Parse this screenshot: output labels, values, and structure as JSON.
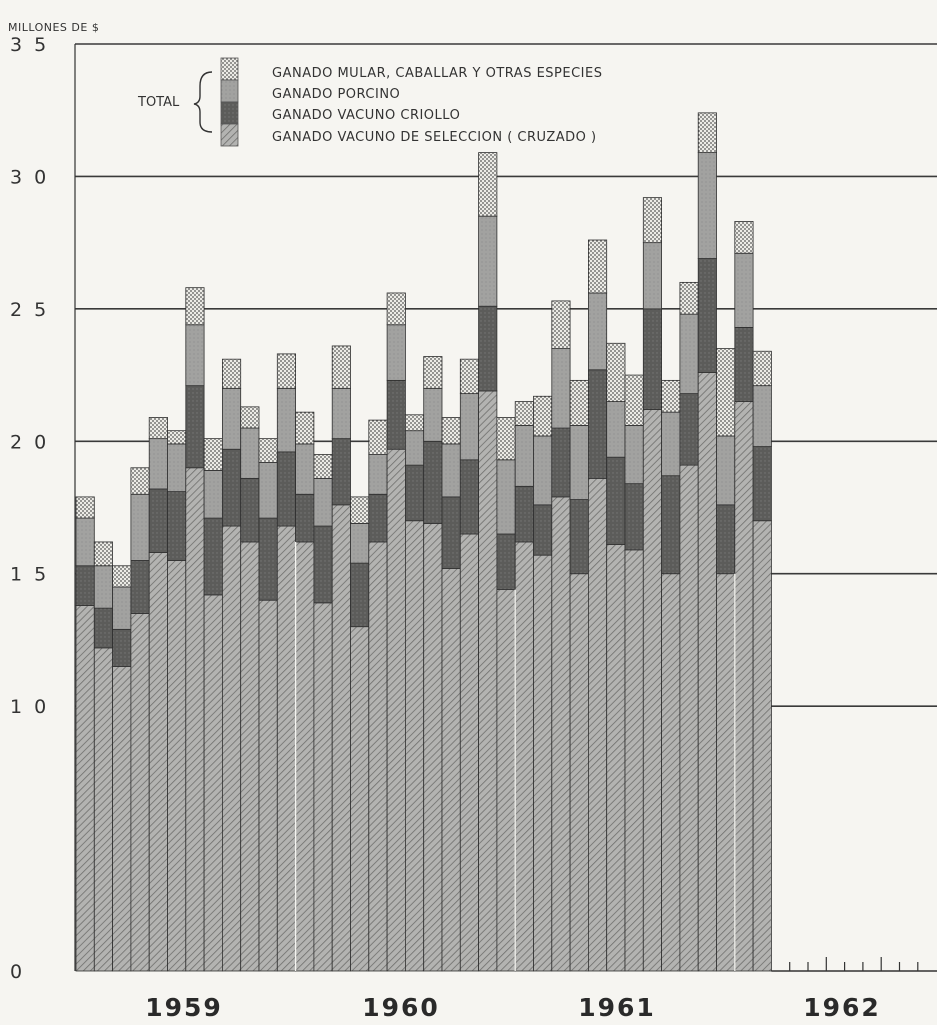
{
  "chart_data": {
    "type": "bar",
    "stacked": true,
    "ylabel": "MILLONES DE $",
    "ylim": [
      0,
      35
    ],
    "yticks": [
      0,
      10,
      15,
      20,
      25,
      30,
      35
    ],
    "ytick_labels": [
      "0",
      "1 0",
      "1 5",
      "2 0",
      "2 5",
      "3 0",
      "3 5"
    ],
    "xtick_labels": [
      "1959",
      "1960",
      "1961",
      "1962"
    ],
    "grid": true,
    "legend": {
      "placement": "top-left",
      "group_label": "TOTAL",
      "entries": [
        "GANADO MULAR, CABALLAR Y OTRAS ESPECIES",
        "GANADO PORCINO",
        "GANADO VACUNO CRIOLLO",
        "GANADO VACUNO DE SELECCION ( CRUZADO )"
      ]
    },
    "series_order": [
      "seleccion",
      "criollo",
      "porcino",
      "mular"
    ],
    "months": [
      {
        "year": 1959,
        "cum": [
          13.8,
          15.3,
          17.1,
          17.9
        ]
      },
      {
        "year": 1959,
        "cum": [
          12.2,
          13.7,
          15.3,
          16.2
        ]
      },
      {
        "year": 1959,
        "cum": [
          11.5,
          12.9,
          14.5,
          15.3
        ]
      },
      {
        "year": 1959,
        "cum": [
          13.5,
          15.5,
          18.0,
          19.0
        ]
      },
      {
        "year": 1959,
        "cum": [
          15.8,
          18.2,
          20.1,
          20.9
        ]
      },
      {
        "year": 1959,
        "cum": [
          15.5,
          18.1,
          19.9,
          20.4
        ]
      },
      {
        "year": 1959,
        "cum": [
          19.0,
          22.1,
          24.4,
          25.8
        ]
      },
      {
        "year": 1959,
        "cum": [
          14.2,
          17.1,
          18.9,
          20.1
        ]
      },
      {
        "year": 1959,
        "cum": [
          16.8,
          19.7,
          22.0,
          23.1
        ]
      },
      {
        "year": 1959,
        "cum": [
          16.2,
          18.6,
          20.5,
          21.3
        ]
      },
      {
        "year": 1959,
        "cum": [
          14.0,
          17.1,
          19.2,
          20.1
        ]
      },
      {
        "year": 1959,
        "cum": [
          16.8,
          19.6,
          22.0,
          23.3
        ]
      },
      {
        "year": 1960,
        "cum": [
          16.2,
          18.0,
          19.9,
          21.1
        ]
      },
      {
        "year": 1960,
        "cum": [
          13.9,
          16.8,
          18.6,
          19.5
        ]
      },
      {
        "year": 1960,
        "cum": [
          17.6,
          20.1,
          22.0,
          23.6
        ]
      },
      {
        "year": 1960,
        "cum": [
          13.0,
          15.4,
          16.9,
          17.9
        ]
      },
      {
        "year": 1960,
        "cum": [
          16.2,
          18.0,
          19.5,
          20.8
        ]
      },
      {
        "year": 1960,
        "cum": [
          19.7,
          22.3,
          24.4,
          25.6
        ]
      },
      {
        "year": 1960,
        "cum": [
          17.0,
          19.1,
          20.4,
          21.0
        ]
      },
      {
        "year": 1960,
        "cum": [
          16.9,
          20.0,
          22.0,
          23.2
        ]
      },
      {
        "year": 1960,
        "cum": [
          15.2,
          17.9,
          19.9,
          20.9
        ]
      },
      {
        "year": 1960,
        "cum": [
          16.5,
          19.3,
          21.8,
          23.1
        ]
      },
      {
        "year": 1960,
        "cum": [
          21.9,
          25.1,
          28.5,
          30.9
        ]
      },
      {
        "year": 1960,
        "cum": [
          14.4,
          16.5,
          19.3,
          20.9
        ]
      },
      {
        "year": 1961,
        "cum": [
          16.2,
          18.3,
          20.6,
          21.5
        ]
      },
      {
        "year": 1961,
        "cum": [
          15.7,
          17.6,
          20.2,
          21.7
        ]
      },
      {
        "year": 1961,
        "cum": [
          17.9,
          20.5,
          23.5,
          25.3
        ]
      },
      {
        "year": 1961,
        "cum": [
          15.0,
          17.8,
          20.6,
          22.3
        ]
      },
      {
        "year": 1961,
        "cum": [
          18.6,
          22.7,
          25.6,
          27.6
        ]
      },
      {
        "year": 1961,
        "cum": [
          16.1,
          19.4,
          21.5,
          23.7
        ]
      },
      {
        "year": 1961,
        "cum": [
          15.9,
          18.4,
          20.6,
          22.5
        ]
      },
      {
        "year": 1961,
        "cum": [
          21.2,
          25.0,
          27.5,
          29.2
        ]
      },
      {
        "year": 1961,
        "cum": [
          15.0,
          18.7,
          21.1,
          22.3
        ]
      },
      {
        "year": 1961,
        "cum": [
          19.1,
          21.8,
          24.8,
          26.0
        ]
      },
      {
        "year": 1961,
        "cum": [
          22.6,
          26.9,
          30.9,
          32.4
        ]
      },
      {
        "year": 1961,
        "cum": [
          15.0,
          17.6,
          20.2,
          23.5
        ]
      },
      {
        "year": 1962,
        "cum": [
          21.5,
          24.3,
          27.1,
          28.3
        ]
      },
      {
        "year": 1962,
        "cum": [
          17.0,
          19.8,
          22.1,
          23.4
        ]
      }
    ]
  }
}
